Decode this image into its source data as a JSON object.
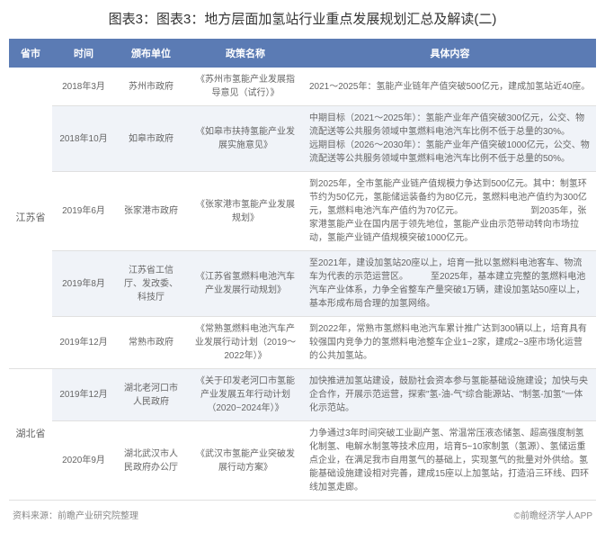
{
  "title": "图表3：图表3：地方层面加氢站行业重点发展规划汇总及解读(二)",
  "headers": {
    "province": "省市",
    "time": "时间",
    "unit": "颁布单位",
    "policy": "政策名称",
    "content": "具体内容"
  },
  "rows": [
    {
      "province": "江苏省",
      "province_rowspan": 5,
      "time": "2018年3月",
      "unit": "苏州市政府",
      "policy": "《苏州市氢能产业发展指导意见（试行）》",
      "content": "2021～2025年：氢能产业链年产值突破500亿元，建成加氢站近40座。",
      "even": false
    },
    {
      "time": "2018年10月",
      "unit": "如皋市政府",
      "policy": "《如皋市扶持氢能产业发展实施意见》",
      "content": "中期目标（2021～2025年）：氢能产业年产值突破300亿元，公交、物流配送等公共服务领域中氢燃料电池汽车比例不低于总量的30%。　　　　远期目标（2026～2030年）：氢能产业年产值突破1000亿元，公交、物流配送等公共服务领域中氢燃料电池汽车比例不低于总量的50%。",
      "even": true
    },
    {
      "time": "2019年6月",
      "unit": "张家港市政府",
      "policy": "《张家港市氢能产业发展规划》",
      "content": "到2025年，全市氢能产业链产值规模力争达到500亿元。其中：制氢环节约为50亿元，氢能储运装备约为80亿元，氢燃料电池产值约为300亿元，氢燃料电池汽车产值约为70亿元。　　　　　　　　到2035年，张家港氢能产业在国内居于领先地位，氢能产业由示范带动转向市场拉动，氢能产业链产值规模突破1000亿元。",
      "even": false
    },
    {
      "time": "2019年8月",
      "unit": "江苏省工信厅、发改委、科技厅",
      "policy": "《江苏省氢燃料电池汽车产业发展行动规划》",
      "content": "至2021年，建设加氢站20座以上，培育一批以氢燃料电池客车、物流车为代表的示范运营区。　　　至2025年，基本建立完整的氢燃料电池汽车产业体系，力争全省整车产量突破1万辆，建设加氢站50座以上，基本形成布局合理的加氢网络。",
      "even": true
    },
    {
      "time": "2019年12月",
      "unit": "常熟市政府",
      "policy": "《常熟氢燃料电池汽车产业发展行动计划（2019～2022年）》",
      "content": "到2022年，常熟市氢燃料电池汽车累计推广达到300辆以上，培育具有较强国内竞争力的氢燃料电池整车企业1~2家，建成2~3座市场化运营的公共加氢站。",
      "even": false
    },
    {
      "province": "湖北省",
      "province_rowspan": 2,
      "time": "2019年12月",
      "unit": "湖北老河口市人民政府",
      "policy": "《关于印发老河口市氢能产业发展五年行动计划（2020~2024年）》",
      "content": "加快推进加氢站建设，鼓励社会资本参与氢能基础设施建设；加快与央企合作，开展示范运营，探索\"氢-油-气\"综合能源站、\"制氢-加氢\"一体化示范站。",
      "even": true
    },
    {
      "time": "2020年9月",
      "unit": "湖北武汉市人民政府办公厅",
      "policy": "《武汉市氢能产业突破发展行动方案》",
      "content": "力争通过3年时间突破工业副产氢、常温常压液态储氢、超高强度制氢化制氢、电解水制氢等技术应用，培育5~10家制氢（氢源）、氢储运重点企业，在满足我市自用氢气的基础上，实现氢气的批量对外供给。氢能基础设施建设相对完善，建成15座以上加氢站，打造沿三环线、四环线加氢走廊。",
      "even": false
    }
  ],
  "footer": {
    "source": "资料来源：前瞻产业研究院整理",
    "brand": "©前瞻经济学人APP"
  },
  "styles": {
    "header_bg": "#5b7bb4",
    "header_color": "#ffffff",
    "even_row_bg": "#f0f3f8",
    "odd_row_bg": "#ffffff",
    "text_color": "#666666",
    "title_color": "#333333",
    "border_color": "#e0e0e0"
  }
}
